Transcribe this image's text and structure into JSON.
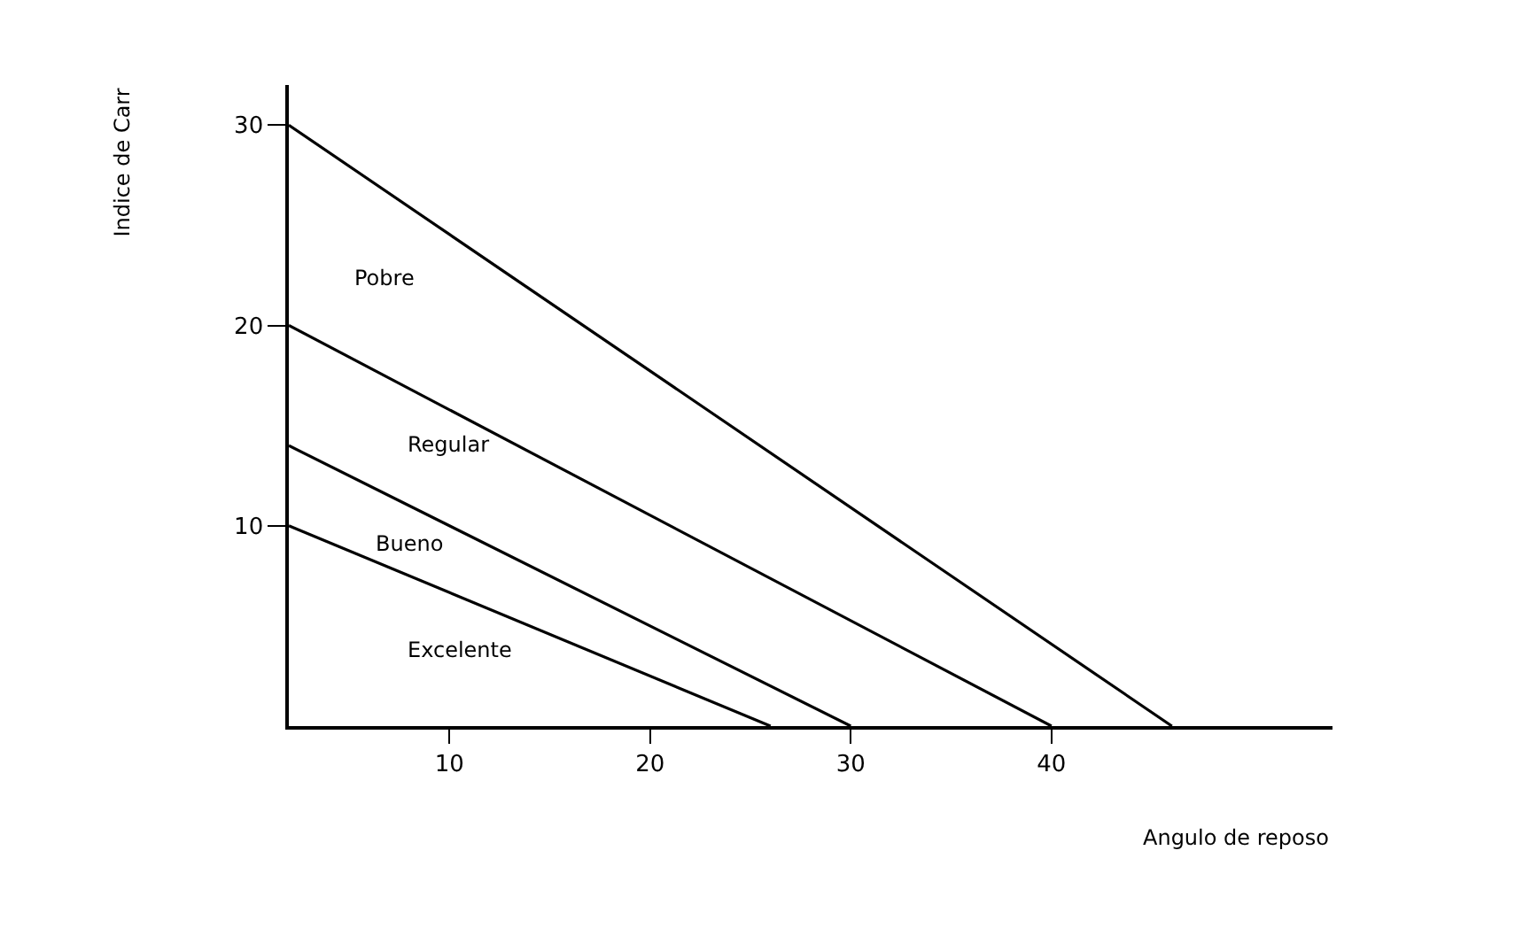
{
  "chart_data": {
    "type": "line",
    "xlabel": "Angulo de reposo",
    "ylabel": "Indice de Carr",
    "xlim": [
      2,
      54
    ],
    "ylim": [
      0,
      32
    ],
    "xticks": [
      10,
      20,
      30,
      40
    ],
    "yticks": [
      10,
      20,
      30
    ],
    "marker": "none",
    "line_style": "solid",
    "series": [
      {
        "color": "#000000",
        "x": [
          2,
          46
        ],
        "values": [
          30,
          0
        ]
      },
      {
        "color": "#000000",
        "x": [
          2,
          40
        ],
        "values": [
          20,
          0
        ]
      },
      {
        "color": "#000000",
        "x": [
          2,
          30
        ],
        "values": [
          14,
          0
        ]
      },
      {
        "color": "#000000",
        "x": [
          2,
          26
        ],
        "values": [
          10,
          0
        ]
      }
    ],
    "annotations": [
      "Pobre",
      "Regular",
      "Bueno",
      "Excelente"
    ]
  }
}
